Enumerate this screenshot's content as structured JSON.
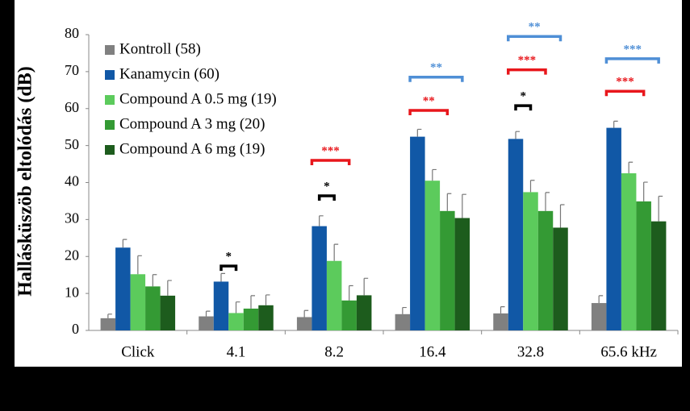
{
  "chart_data": {
    "type": "bar",
    "y_label": "Hallásküszöb eltolódás (dB)",
    "categories": [
      "Click",
      "4.1",
      "8.2",
      "16.4",
      "32.8",
      "65.6 kHz"
    ],
    "ylim": [
      0,
      80
    ],
    "yticks": [
      0,
      10,
      20,
      30,
      40,
      50,
      60,
      70,
      80
    ],
    "legend": "upper left",
    "series": [
      {
        "name": "Kontroll (58)",
        "color": "#808080",
        "values": [
          3.3,
          3.8,
          3.6,
          4.4,
          4.6,
          7.4
        ],
        "errors": [
          1.1,
          1.4,
          1.8,
          1.8,
          1.8,
          2.0
        ]
      },
      {
        "name": "Kanamycin (60)",
        "color": "#1158a6",
        "values": [
          22.4,
          13.2,
          28.2,
          52.4,
          51.8,
          54.8
        ],
        "errors": [
          2.2,
          2.2,
          2.8,
          2.0,
          2.0,
          1.8
        ]
      },
      {
        "name": "Compound A 0.5 mg (19)",
        "color": "#5ccb5c",
        "values": [
          15.2,
          4.7,
          18.8,
          40.5,
          37.4,
          42.5
        ],
        "errors": [
          5.0,
          3.0,
          4.5,
          3.0,
          3.2,
          3.0
        ]
      },
      {
        "name": "Compound A 3 mg (20)",
        "color": "#349a34",
        "values": [
          11.9,
          5.9,
          8.1,
          32.3,
          32.3,
          34.9
        ],
        "errors": [
          3.2,
          3.5,
          4.0,
          4.7,
          5.0,
          5.2
        ]
      },
      {
        "name": "Compound A 6 mg (19)",
        "color": "#1d5c1d",
        "values": [
          9.4,
          6.8,
          9.5,
          30.4,
          27.8,
          29.5
        ],
        "errors": [
          4.1,
          2.8,
          4.6,
          6.4,
          6.2,
          6.8
        ]
      }
    ],
    "annotations": [
      {
        "category": 1,
        "text": "*",
        "color": "#000000",
        "y": 17.4
      },
      {
        "category": 2,
        "text": "*",
        "color": "#000000",
        "y": 36.4
      },
      {
        "category": 2,
        "text": "***",
        "color": "#e8171c",
        "y": 46.0
      },
      {
        "category": 3,
        "text": "**",
        "color": "#e8171c",
        "y": 59.5
      },
      {
        "category": 3,
        "text": "**",
        "color": "#4f8fd6",
        "y": 68.5
      },
      {
        "category": 4,
        "text": "*",
        "color": "#000000",
        "y": 60.8
      },
      {
        "category": 4,
        "text": "***",
        "color": "#e8171c",
        "y": 70.5
      },
      {
        "category": 4,
        "text": "**",
        "color": "#4f8fd6",
        "y": 79.5
      },
      {
        "category": 5,
        "text": "***",
        "color": "#e8171c",
        "y": 64.7
      },
      {
        "category": 5,
        "text": "***",
        "color": "#4f8fd6",
        "y": 73.5
      }
    ]
  }
}
